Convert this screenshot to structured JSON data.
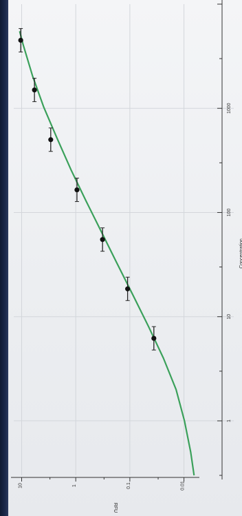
{
  "colors": {
    "curve": "#3aa05a",
    "points": "#111111",
    "errorbar": "#222222",
    "grid": "#d3d6db",
    "axis": "#333333"
  },
  "chart_data": {
    "type": "scatter",
    "orientation": "rotated-90-clockwise",
    "title": "",
    "xlabel": "Concentration",
    "ylabel": "RFU",
    "xscale": "log",
    "yscale": "log",
    "xlim": [
      0.3,
      10000
    ],
    "ylim": [
      0.0055,
      14
    ],
    "x_tick_labels": [
      "1",
      "10",
      "100",
      "1000"
    ],
    "x_ticks": [
      1,
      10,
      100,
      1000
    ],
    "y_tick_labels": [
      "10",
      "1",
      "0.1",
      "0.01"
    ],
    "y_ticks": [
      10,
      1,
      0.1,
      0.01
    ],
    "grid": true,
    "legend": "none",
    "series": [
      {
        "points": [
          {
            "x": 6.2,
            "y": 0.036,
            "err": 0.012
          },
          {
            "x": 18.5,
            "y": 0.11,
            "err": 0.04
          },
          {
            "x": 55,
            "y": 0.32,
            "err": 0.1
          },
          {
            "x": 165,
            "y": 0.95,
            "err": 0.25
          },
          {
            "x": 500,
            "y": 2.9,
            "err": 0.85
          },
          {
            "x": 1500,
            "y": 5.8,
            "err": 1.6
          },
          {
            "x": 4500,
            "y": 10.4,
            "err": 2.6
          }
        ],
        "fit_curve": {
          "x": [
            0.3,
            0.5,
            1,
            2,
            4,
            8,
            16,
            32,
            64,
            128,
            256,
            512,
            1024,
            2048,
            4096,
            5500
          ],
          "y": [
            0.0065,
            0.0075,
            0.0098,
            0.014,
            0.024,
            0.045,
            0.087,
            0.17,
            0.33,
            0.64,
            1.22,
            2.2,
            3.9,
            6.3,
            9.4,
            10.9
          ]
        }
      }
    ]
  }
}
